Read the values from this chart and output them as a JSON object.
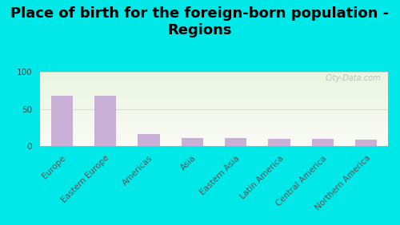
{
  "title": "Place of birth for the foreign-born population -\nRegions",
  "categories": [
    "Europe",
    "Eastern Europe",
    "Americas",
    "Asia",
    "Eastern Asia",
    "Latin America",
    "Central America",
    "Northern America"
  ],
  "values": [
    68,
    68,
    16,
    11,
    11,
    10,
    10,
    9
  ],
  "bar_color": "#c9aed6",
  "ylim": [
    0,
    100
  ],
  "yticks": [
    0,
    50,
    100
  ],
  "bg_outer": "#00e8e8",
  "watermark": "City-Data.com",
  "title_fontsize": 13,
  "tick_fontsize": 7.5
}
